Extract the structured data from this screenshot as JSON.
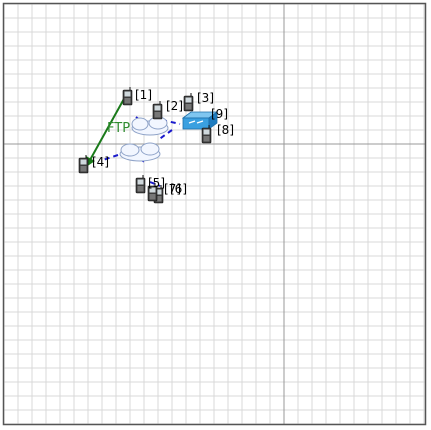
{
  "nodes": [
    {
      "id": "n1",
      "label": "[1]",
      "icon": "phone-icon"
    },
    {
      "id": "n2",
      "label": "[2]",
      "icon": "phone-icon"
    },
    {
      "id": "n3",
      "label": "[3]",
      "icon": "phone-icon"
    },
    {
      "id": "n4",
      "label": "[4]",
      "icon": "phone-icon"
    },
    {
      "id": "n5",
      "label": "[5]",
      "icon": "phone-icon"
    },
    {
      "id": "n6",
      "label": "[6]",
      "icon": "phone-icon"
    },
    {
      "id": "n7",
      "label": "[7]",
      "icon": "phone-icon"
    },
    {
      "id": "n8",
      "label": "[8]",
      "icon": "phone-icon"
    },
    {
      "id": "n9",
      "label": "[9]",
      "icon": "router-icon"
    }
  ],
  "flow": {
    "label": "FTP",
    "from": "n1",
    "to": "n4"
  },
  "colors": {
    "grid_minor": "#d9d9d9",
    "grid_axis": "#999999",
    "border": "#555555",
    "flow_arrow": "#1a7a1a",
    "wireless_link": "#1a1acc",
    "router_fill": "#3aa0e0"
  }
}
